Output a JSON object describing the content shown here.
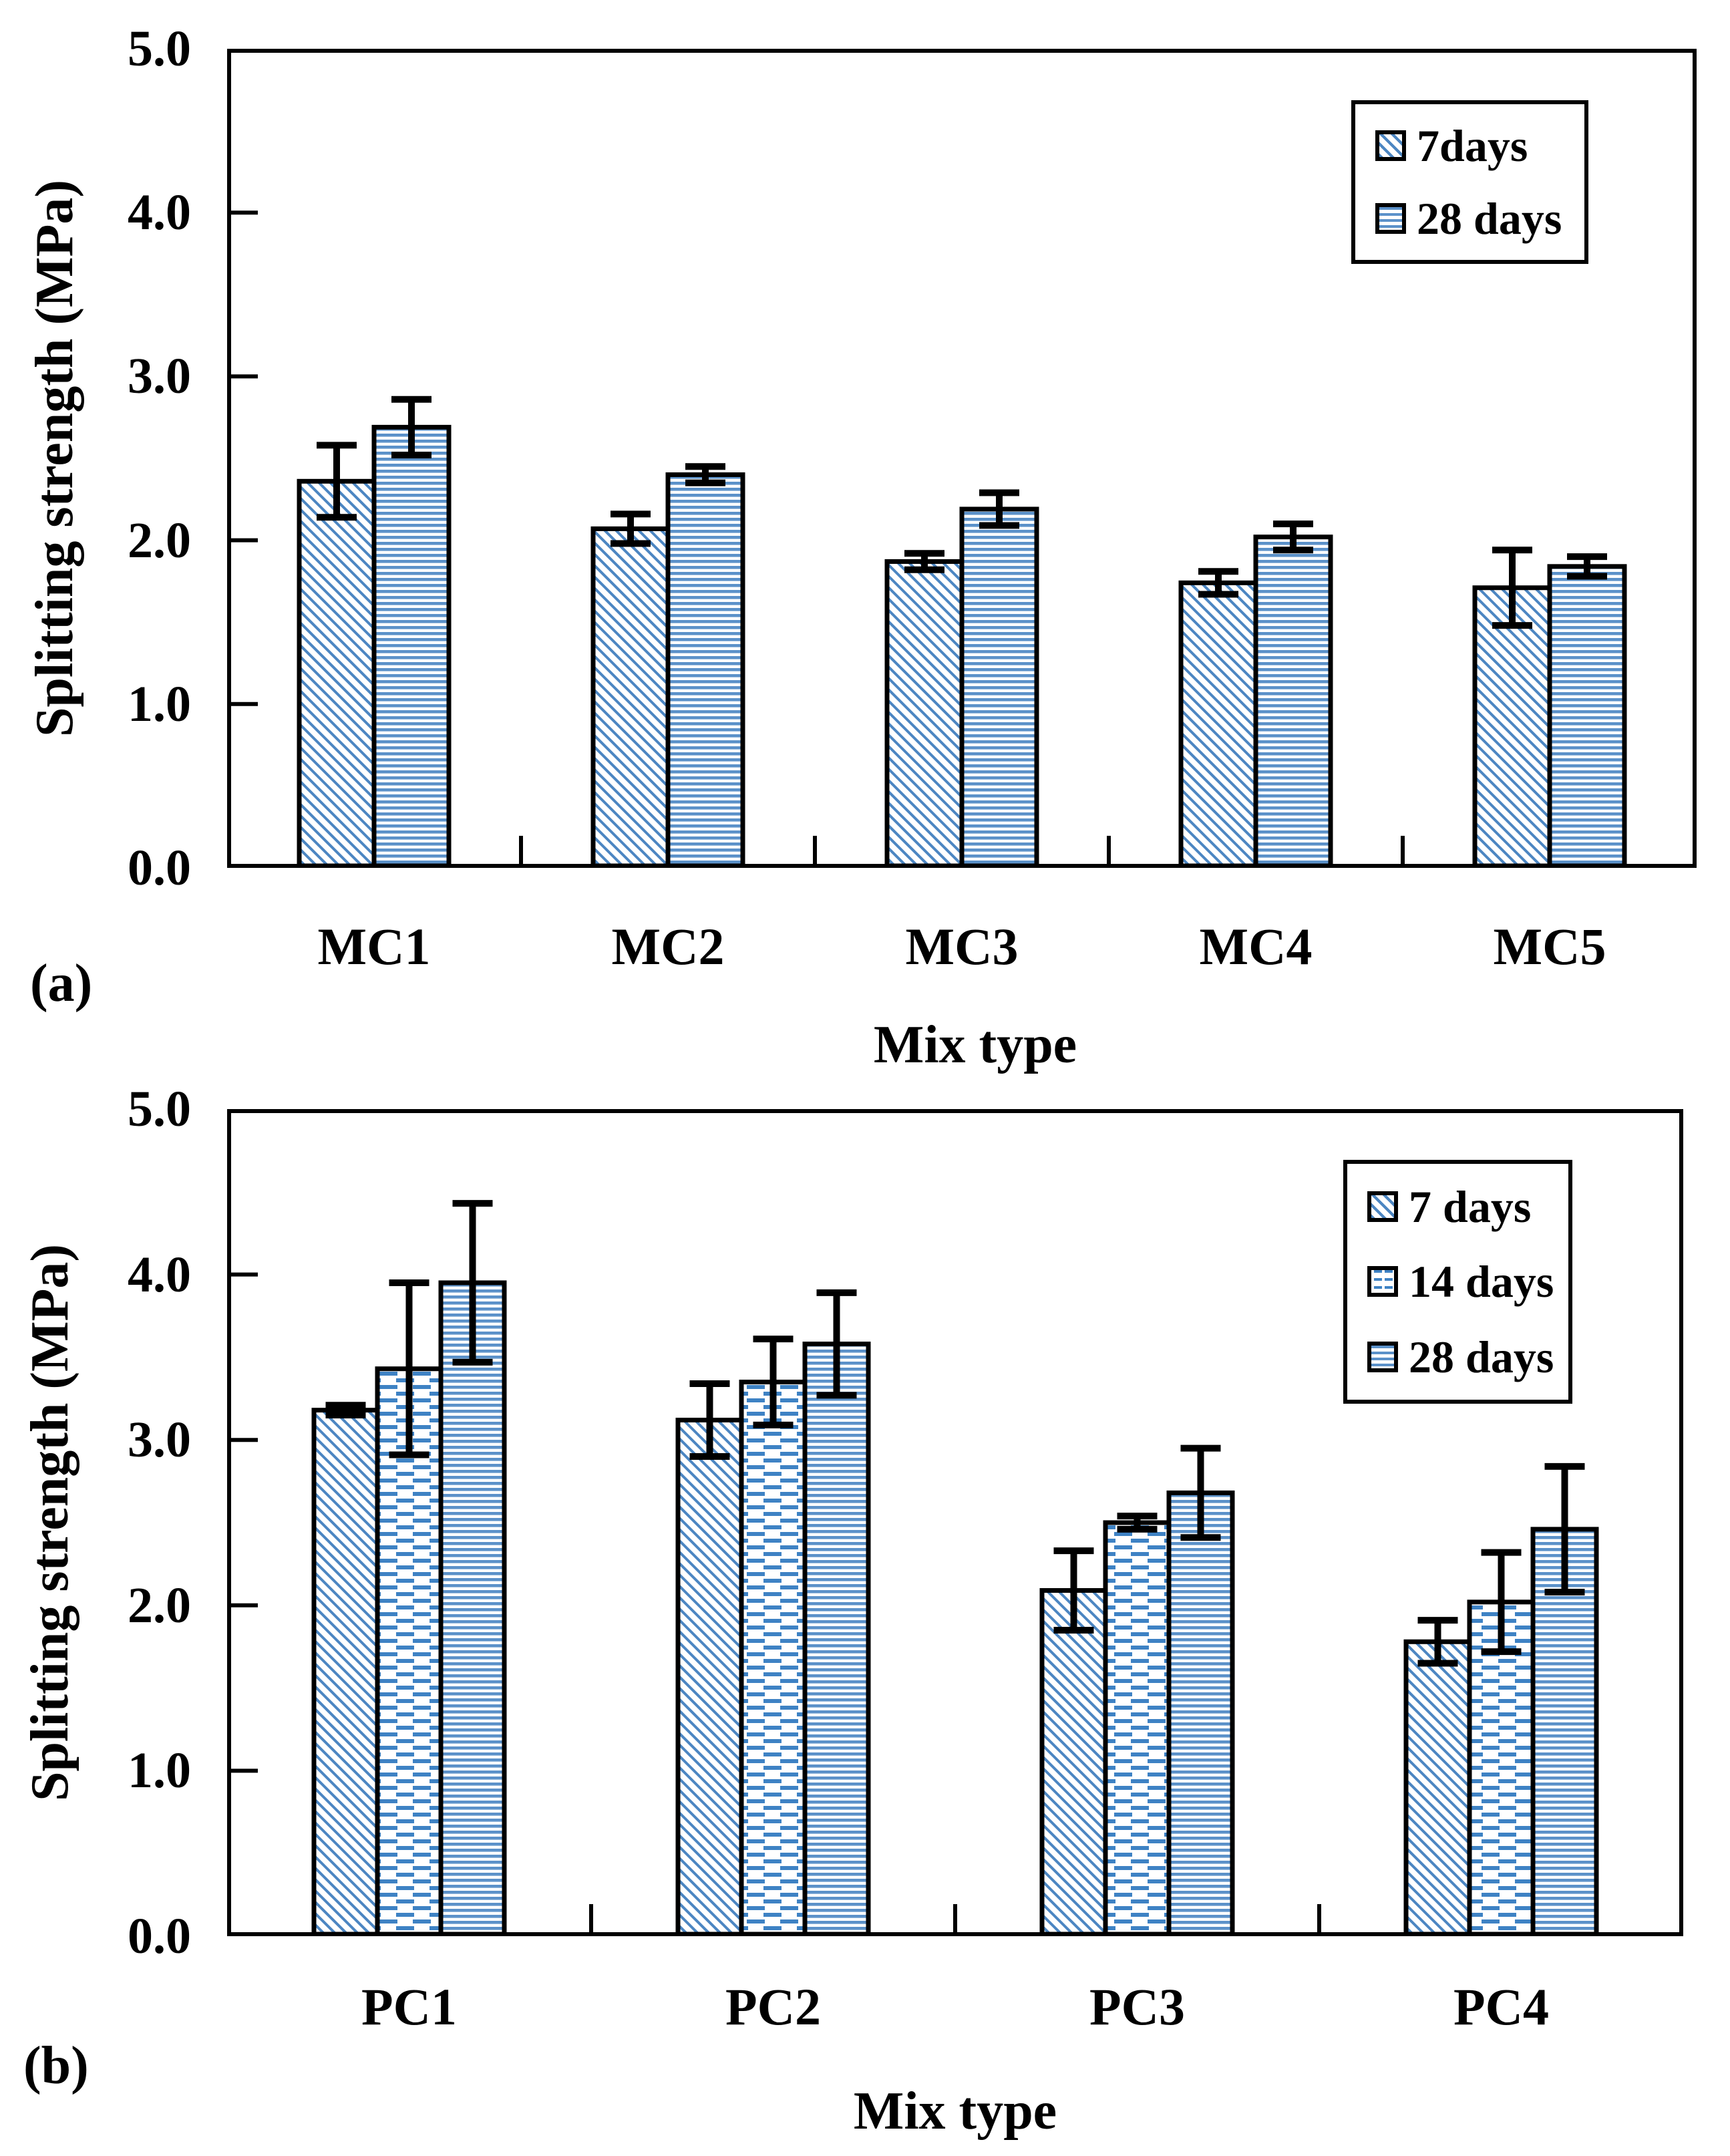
{
  "figure": {
    "background": "#ffffff",
    "ylabel": "Splitting strength (MPa)",
    "xlabel": "Mix type",
    "colors": {
      "hatch_blue": "#4c86c2",
      "stripe_blue": "#5b91c9",
      "dash_blue": "#3e82c4",
      "bar_border": "#000000",
      "axis_black": "#000000"
    }
  },
  "chart_data": [
    {
      "type": "bar",
      "panel": "(a)",
      "title": "",
      "xlabel": "Mix type",
      "ylabel": "Splitting strength (MPa)",
      "ylim": [
        0,
        5
      ],
      "ytick_labels": [
        "5.0",
        "4.0",
        "3.0",
        "2.0",
        "1.0",
        "0.0"
      ],
      "grid": false,
      "legend_position": "top-right",
      "categories": [
        "MC1",
        "MC2",
        "MC3",
        "MC4",
        "MC5"
      ],
      "series": [
        {
          "name": "7days",
          "pattern": "diagonal",
          "values": [
            2.36,
            2.07,
            1.87,
            1.74,
            1.71
          ],
          "errors": [
            0.22,
            0.09,
            0.05,
            0.07,
            0.23
          ]
        },
        {
          "name": "28 days",
          "pattern": "hstripe",
          "values": [
            2.69,
            2.4,
            2.19,
            2.02,
            1.84
          ],
          "errors": [
            0.17,
            0.05,
            0.1,
            0.08,
            0.06
          ]
        }
      ]
    },
    {
      "type": "bar",
      "panel": "(b)",
      "title": "",
      "xlabel": "Mix type",
      "ylabel": "Splitting strength (MPa)",
      "ylim": [
        0,
        5
      ],
      "ytick_labels": [
        "5.0",
        "4.0",
        "3.0",
        "2.0",
        "1.0",
        "0.0"
      ],
      "grid": false,
      "legend_position": "top-right",
      "categories": [
        "PC1",
        "PC2",
        "PC3",
        "PC4"
      ],
      "series": [
        {
          "name": "7 days",
          "pattern": "diagonal",
          "values": [
            3.18,
            3.12,
            2.09,
            1.78
          ],
          "errors": [
            0.03,
            0.22,
            0.24,
            0.13
          ]
        },
        {
          "name": "14 days",
          "pattern": "dashrow",
          "values": [
            3.43,
            3.35,
            2.5,
            2.02
          ],
          "errors": [
            0.52,
            0.26,
            0.04,
            0.3
          ]
        },
        {
          "name": "28 days",
          "pattern": "hstripe",
          "values": [
            3.95,
            3.58,
            2.68,
            2.46
          ],
          "errors": [
            0.48,
            0.31,
            0.27,
            0.38
          ]
        }
      ]
    }
  ]
}
